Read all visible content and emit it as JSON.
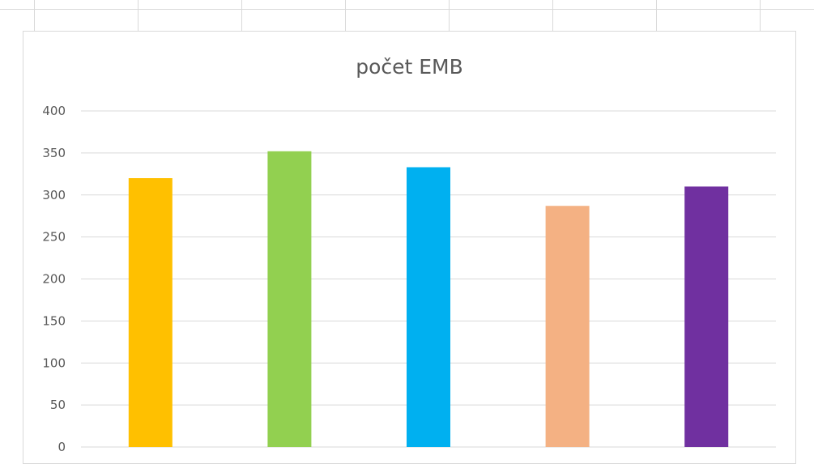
{
  "chart_data": {
    "type": "bar",
    "title": "počet EMB",
    "xlabel": "",
    "ylabel": "",
    "categories": [
      "",
      "",
      "",
      "",
      ""
    ],
    "values": [
      320,
      352,
      333,
      287,
      310
    ],
    "colors": [
      "#FFC000",
      "#92D050",
      "#00B0F0",
      "#F4B183",
      "#7030A0"
    ],
    "ylim": [
      0,
      400
    ],
    "yticks": [
      "0",
      "50",
      "100",
      "150",
      "200",
      "250",
      "300",
      "350",
      "400"
    ],
    "grid": true,
    "legend": "none"
  }
}
